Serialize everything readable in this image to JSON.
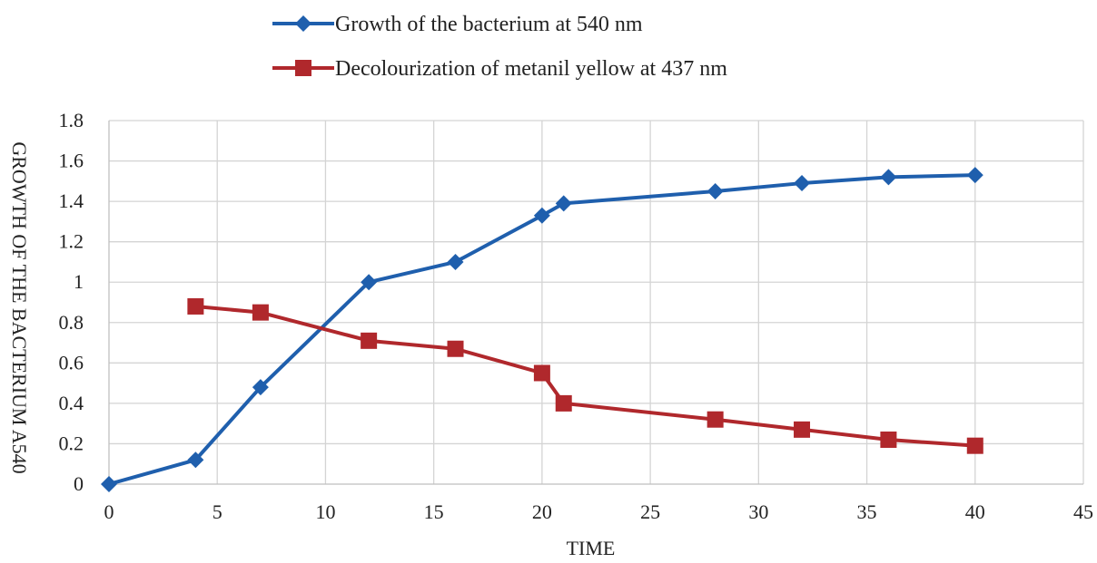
{
  "chart_data": {
    "type": "line",
    "title": "",
    "xlabel": "TIME",
    "ylabel": "GROWTH OF THE BACTERIUM A540",
    "xlim": [
      0,
      45
    ],
    "ylim": [
      0,
      1.8
    ],
    "xticks": [
      "0",
      "5",
      "10",
      "15",
      "20",
      "25",
      "30",
      "35",
      "40",
      "45"
    ],
    "yticks": [
      "0",
      "0.2",
      "0.4",
      "0.6",
      "0.8",
      "1",
      "1.2",
      "1.4",
      "1.6",
      "1.8"
    ],
    "grid": true,
    "legend_position": "top-center",
    "series": [
      {
        "name": "Growth of the bacterium at 540 nm",
        "color": "#1f5fad",
        "marker": "diamond",
        "x": [
          0,
          4,
          7,
          12,
          16,
          20,
          21,
          28,
          32,
          36,
          40
        ],
        "y": [
          0,
          0.12,
          0.48,
          1.0,
          1.1,
          1.33,
          1.39,
          1.45,
          1.49,
          1.52,
          1.53
        ]
      },
      {
        "name": "Decolourization of metanil yellow at 437 nm",
        "color": "#b0282c",
        "marker": "square",
        "x": [
          4,
          7,
          12,
          16,
          20,
          21,
          28,
          32,
          36,
          40
        ],
        "y": [
          0.88,
          0.85,
          0.71,
          0.67,
          0.55,
          0.4,
          0.32,
          0.27,
          0.22,
          0.19
        ]
      }
    ]
  }
}
